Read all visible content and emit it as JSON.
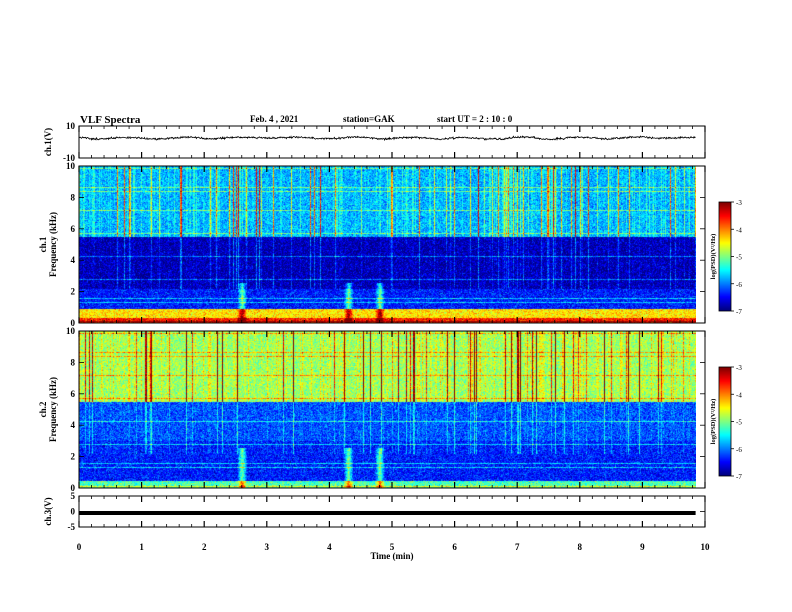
{
  "header": {
    "title": "VLF Spectra",
    "date": "Feb. 4 , 2021",
    "station": "station=GAK",
    "start": "start UT =  2 : 10 : 0"
  },
  "colors": {
    "cmap": [
      "#00007f",
      "#0000ff",
      "#0080ff",
      "#00ffff",
      "#80ff80",
      "#ffff00",
      "#ff8000",
      "#ff0000",
      "#7f0000"
    ],
    "trace": "#000000"
  },
  "chart_data": [
    {
      "type": "line",
      "panel": "ch1_waveform",
      "ylabel": "ch.1(V)",
      "ylim": [
        -10,
        10
      ],
      "yticks": [
        "10",
        "-10"
      ],
      "approx_level": 2.5,
      "approx_amplitude": 1.5
    },
    {
      "type": "heatmap",
      "panel": "ch1_spectrogram",
      "ylabel": "ch.1\nFrequency (kHz)",
      "ylim": [
        0,
        10
      ],
      "yticks": [
        "0",
        "2",
        "4",
        "6",
        "8",
        "10"
      ],
      "colorbar": {
        "label": "log(PSD)(V²/Hz)",
        "range": [
          -7,
          -3
        ],
        "ticks": [
          "-3",
          "-4",
          "-5",
          "-6",
          "-7"
        ]
      },
      "bands_khz": [
        {
          "from": 0.0,
          "to": 0.35,
          "level": -3.6
        },
        {
          "from": 0.35,
          "to": 0.9,
          "level": -4.4
        },
        {
          "from": 0.9,
          "to": 2.2,
          "level": -6.4
        },
        {
          "from": 2.2,
          "to": 5.5,
          "level": -6.8
        },
        {
          "from": 5.5,
          "to": 10.0,
          "level": -5.8
        }
      ],
      "bursts_min": [
        2.6,
        4.3,
        4.8
      ]
    },
    {
      "type": "heatmap",
      "panel": "ch2_spectrogram",
      "ylabel": "ch.2\nFrequency (kHz)",
      "ylim": [
        0,
        10
      ],
      "yticks": [
        "0",
        "2",
        "4",
        "6",
        "8",
        "10"
      ],
      "colorbar": {
        "label": "log(PSD)(V²/Hz)",
        "range": [
          -7,
          -3
        ],
        "ticks": [
          "-3",
          "-4",
          "-5",
          "-6",
          "-7"
        ]
      },
      "bands_khz": [
        {
          "from": 0.0,
          "to": 0.45,
          "level": -5.2
        },
        {
          "from": 0.45,
          "to": 3.0,
          "level": -6.4
        },
        {
          "from": 3.0,
          "to": 5.5,
          "level": -6.2
        },
        {
          "from": 5.5,
          "to": 10.0,
          "level": -4.9
        }
      ],
      "bursts_min": [
        2.6,
        4.3,
        4.8
      ]
    },
    {
      "type": "line",
      "panel": "ch3_waveform",
      "ylabel": "ch.3(V)",
      "ylim": [
        -5,
        5
      ],
      "yticks": [
        "5",
        "0",
        "-5"
      ],
      "approx_level": -0.5
    }
  ],
  "xaxis": {
    "label": "Time (min)",
    "range": [
      0,
      10
    ],
    "ticks": [
      "0",
      "1",
      "2",
      "3",
      "4",
      "5",
      "6",
      "7",
      "8",
      "9",
      "10"
    ],
    "data_end_min": 9.85
  }
}
